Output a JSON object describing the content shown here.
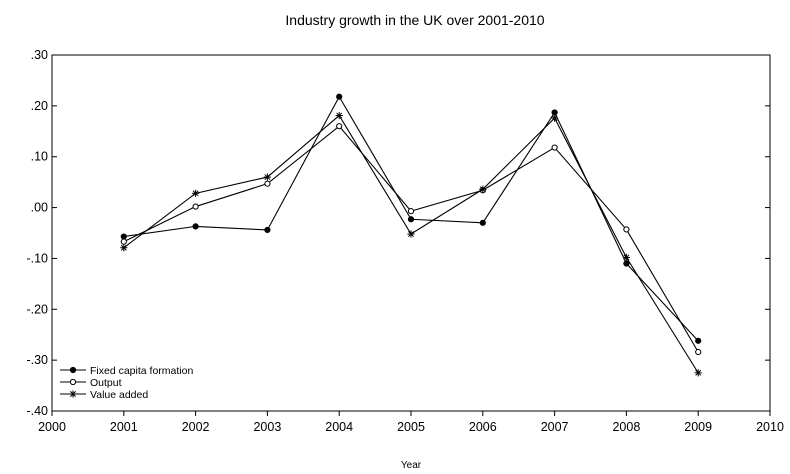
{
  "chart_data": {
    "type": "line",
    "title": "Industry growth in the UK over 2001-2010",
    "xlabel": "Year",
    "ylabel": "",
    "xlim": [
      2000,
      2010
    ],
    "ylim": [
      -0.4,
      0.3
    ],
    "x_ticks": [
      "2000",
      "2001",
      "2002",
      "2003",
      "2004",
      "2005",
      "2006",
      "2007",
      "2008",
      "2009",
      "2010"
    ],
    "y_ticks": [
      ".30",
      ".20",
      ".10",
      ".00",
      "-.10",
      "-.20",
      "-.30",
      "-.40"
    ],
    "grid": false,
    "legend_position": "bottom-left",
    "x": [
      2001,
      2002,
      2003,
      2004,
      2005,
      2006,
      2007,
      2008,
      2009
    ],
    "series": [
      {
        "name": "Fixed capita formation",
        "marker": "filled-circle",
        "values": [
          -0.057,
          -0.037,
          -0.044,
          0.218,
          -0.023,
          -0.03,
          0.187,
          -0.11,
          -0.262
        ]
      },
      {
        "name": "Output",
        "marker": "open-circle",
        "values": [
          -0.067,
          0.002,
          0.047,
          0.16,
          -0.007,
          0.034,
          0.118,
          -0.043,
          -0.284
        ]
      },
      {
        "name": "Value added",
        "marker": "star",
        "values": [
          -0.079,
          0.028,
          0.06,
          0.181,
          -0.052,
          0.036,
          0.176,
          -0.098,
          -0.325
        ]
      }
    ],
    "colors": {
      "line": "#000000",
      "background": "#ffffff"
    }
  }
}
